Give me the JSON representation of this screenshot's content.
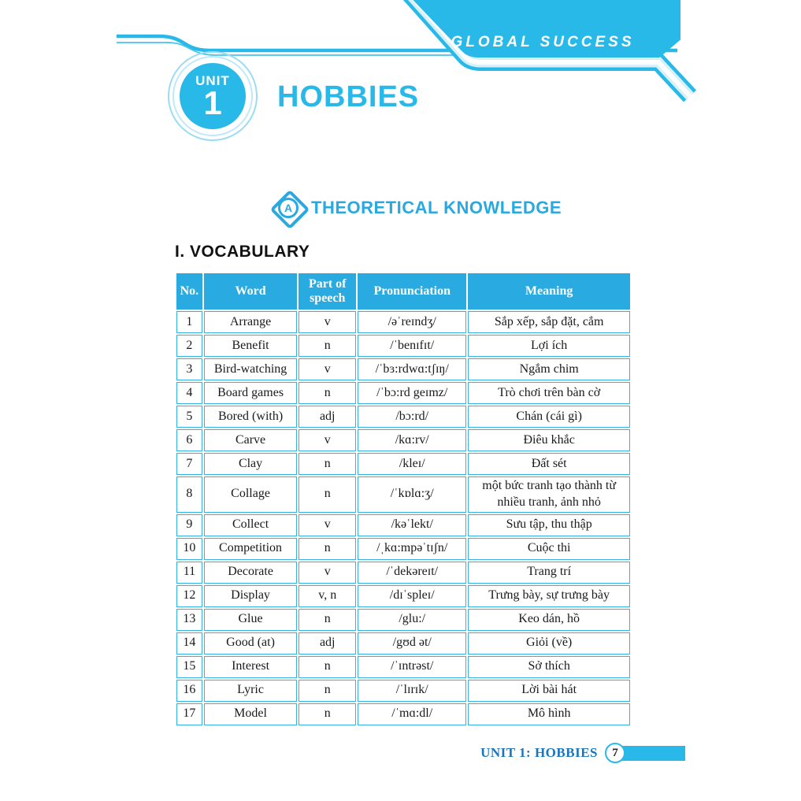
{
  "colors": {
    "accent_cyan": "#29b9e8",
    "table_header_blue": "#29abe2",
    "footer_text_blue": "#1b75bc",
    "light_stripe": "#d6f1fa"
  },
  "header": {
    "brand": "GLOBAL SUCCESS",
    "unit_label": "UNIT",
    "unit_number": "1",
    "unit_title": "HOBBIES"
  },
  "section": {
    "badge_letter": "A",
    "title": "THEORETICAL KNOWLEDGE"
  },
  "vocabulary_heading": "I. VOCABULARY",
  "table": {
    "headers": [
      "No.",
      "Word",
      "Part of speech",
      "Pronunciation",
      "Meaning"
    ],
    "column_keys": [
      "no",
      "word",
      "pos",
      "pron",
      "meaning"
    ],
    "rows": [
      {
        "no": "1",
        "word": "Arrange",
        "pos": "v",
        "pron": "/əˈreɪndʒ/",
        "meaning": "Sắp xếp, sắp đặt, cắm"
      },
      {
        "no": "2",
        "word": "Benefit",
        "pos": "n",
        "pron": "/ˈbenɪfɪt/",
        "meaning": "Lợi ích"
      },
      {
        "no": "3",
        "word": "Bird-watching",
        "pos": "v",
        "pron": "/ˈbɜ:rdwɑ:tʃɪŋ/",
        "meaning": "Ngắm chim"
      },
      {
        "no": "4",
        "word": "Board games",
        "pos": "n",
        "pron": "/ˈbɔ:rd geɪmz/",
        "meaning": "Trò chơi trên bàn cờ"
      },
      {
        "no": "5",
        "word": "Bored (with)",
        "pos": "adj",
        "pron": "/bɔ:rd/",
        "meaning": "Chán (cái gì)"
      },
      {
        "no": "6",
        "word": "Carve",
        "pos": "v",
        "pron": "/kɑ:rv/",
        "meaning": "Điêu khắc"
      },
      {
        "no": "7",
        "word": "Clay",
        "pos": "n",
        "pron": "/kleɪ/",
        "meaning": "Đất sét"
      },
      {
        "no": "8",
        "word": "Collage",
        "pos": "n",
        "pron": "/ˈkɒlɑ:ʒ/",
        "meaning": "một bức tranh tạo thành từ nhiều tranh, ảnh nhỏ"
      },
      {
        "no": "9",
        "word": "Collect",
        "pos": "v",
        "pron": "/kəˈlekt/",
        "meaning": "Sưu tập, thu thập"
      },
      {
        "no": "10",
        "word": "Competition",
        "pos": "n",
        "pron": "/ˌkɑ:mpəˈtɪʃn/",
        "meaning": "Cuộc thi"
      },
      {
        "no": "11",
        "word": "Decorate",
        "pos": "v",
        "pron": "/ˈdekəreɪt/",
        "meaning": "Trang trí"
      },
      {
        "no": "12",
        "word": "Display",
        "pos": "v, n",
        "pron": "/dɪˈspleɪ/",
        "meaning": "Trưng bày, sự trưng bày"
      },
      {
        "no": "13",
        "word": "Glue",
        "pos": "n",
        "pron": "/glu:/",
        "meaning": "Keo dán, hồ"
      },
      {
        "no": "14",
        "word": "Good (at)",
        "pos": "adj",
        "pron": "/gʊd ət/",
        "meaning": "Giỏi (về)"
      },
      {
        "no": "15",
        "word": "Interest",
        "pos": "n",
        "pron": "/ˈɪntrəst/",
        "meaning": "Sở thích"
      },
      {
        "no": "16",
        "word": "Lyric",
        "pos": "n",
        "pron": "/ˈlɪrɪk/",
        "meaning": "Lời bài hát"
      },
      {
        "no": "17",
        "word": "Model",
        "pos": "n",
        "pron": "/ˈmɑ:dl/",
        "meaning": "Mô hình"
      }
    ]
  },
  "footer": {
    "label": "UNIT 1: HOBBIES",
    "page_number": "7"
  }
}
